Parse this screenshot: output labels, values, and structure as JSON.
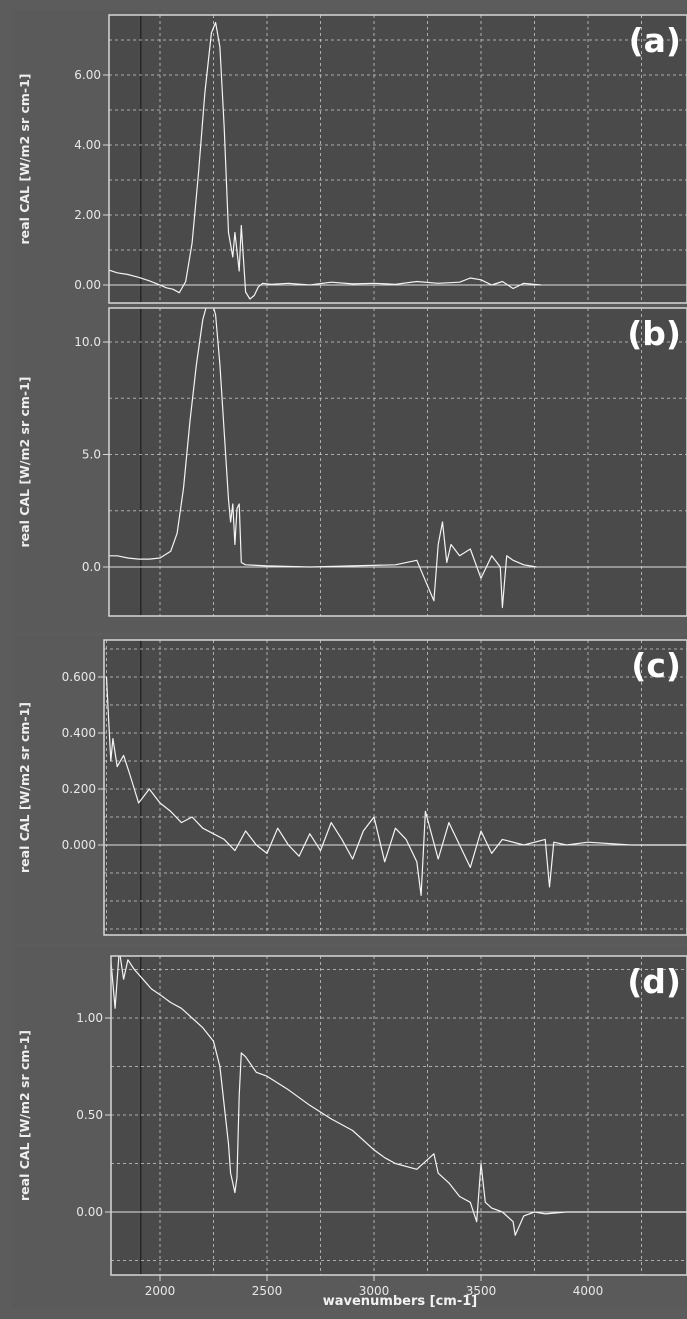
{
  "chart_data": [
    {
      "type": "line",
      "panel_label": "(a)",
      "ylabel": "real CAL  [W/m2 sr cm-1]",
      "xlim": [
        1750,
        4480
      ],
      "ylim": [
        -0.55,
        7.6
      ],
      "yticks": [
        0.0,
        2.0,
        4.0,
        6.0
      ],
      "ytick_labels": [
        "0.00",
        "2.00",
        "4.00",
        "6.00"
      ],
      "x": [
        1750,
        1800,
        1850,
        1900,
        1950,
        2000,
        2030,
        2060,
        2090,
        2120,
        2150,
        2180,
        2210,
        2240,
        2260,
        2280,
        2300,
        2320,
        2340,
        2350,
        2370,
        2380,
        2400,
        2420,
        2440,
        2460,
        2480,
        2520,
        2600,
        2700,
        2800,
        2900,
        3000,
        3100,
        3200,
        3300,
        3400,
        3450,
        3500,
        3550,
        3600,
        3650,
        3700,
        3780
      ],
      "y": [
        0.45,
        0.35,
        0.3,
        0.22,
        0.12,
        0.0,
        -0.08,
        -0.12,
        -0.22,
        0.1,
        1.2,
        3.2,
        5.5,
        7.2,
        7.5,
        6.8,
        4.5,
        1.5,
        0.8,
        1.5,
        0.4,
        1.7,
        -0.2,
        -0.4,
        -0.3,
        -0.05,
        0.05,
        0.02,
        0.05,
        0.0,
        0.08,
        0.03,
        0.05,
        0.02,
        0.1,
        0.05,
        0.08,
        0.2,
        0.15,
        0.0,
        0.1,
        -0.1,
        0.05,
        0.0
      ]
    },
    {
      "type": "line",
      "panel_label": "(b)",
      "ylabel": "real CAL  [W/m2 sr cm-1]",
      "xlim": [
        1750,
        4480
      ],
      "ylim": [
        -2.9,
        12.3
      ],
      "yticks": [
        0.0,
        5.0,
        10.0
      ],
      "ytick_labels": [
        "0.0",
        "5.0",
        "10.0"
      ],
      "x": [
        1750,
        1800,
        1850,
        1900,
        1950,
        2000,
        2050,
        2080,
        2110,
        2140,
        2170,
        2200,
        2220,
        2240,
        2260,
        2280,
        2300,
        2320,
        2330,
        2340,
        2350,
        2360,
        2370,
        2380,
        2400,
        2500,
        2700,
        2900,
        3100,
        3200,
        3280,
        3300,
        3320,
        3340,
        3360,
        3400,
        3450,
        3500,
        3550,
        3590,
        3600,
        3620,
        3650,
        3700,
        3760
      ],
      "y": [
        0.5,
        0.5,
        0.4,
        0.35,
        0.35,
        0.4,
        0.7,
        1.5,
        3.5,
        6.5,
        9.0,
        11.0,
        11.7,
        11.9,
        11.2,
        9.0,
        6.0,
        3.0,
        2.0,
        2.8,
        1.0,
        2.6,
        2.8,
        0.2,
        0.1,
        0.05,
        0.0,
        0.05,
        0.1,
        0.3,
        -1.5,
        1.0,
        2.0,
        0.2,
        1.0,
        0.5,
        0.8,
        -0.5,
        0.5,
        0.0,
        -1.8,
        0.5,
        0.3,
        0.1,
        0.0
      ]
    },
    {
      "type": "line",
      "panel_label": "(c)",
      "ylabel": "real CAL  [W/m2 sr cm-1]",
      "xlim": [
        1750,
        4480
      ],
      "ylim": [
        -0.2,
        0.68
      ],
      "yticks": [
        0.0,
        0.2,
        0.4,
        0.6
      ],
      "ytick_labels": [
        "0.000",
        "0.200",
        "0.400",
        "0.600"
      ],
      "x": [
        1750,
        1760,
        1770,
        1780,
        1800,
        1830,
        1860,
        1900,
        1950,
        2000,
        2050,
        2100,
        2150,
        2200,
        2250,
        2300,
        2350,
        2400,
        2450,
        2500,
        2550,
        2600,
        2650,
        2700,
        2750,
        2800,
        2850,
        2900,
        2950,
        3000,
        3050,
        3100,
        3150,
        3200,
        3220,
        3240,
        3300,
        3350,
        3400,
        3450,
        3500,
        3550,
        3600,
        3700,
        3800,
        3820,
        3840,
        3900,
        4000,
        4200,
        4480
      ],
      "y": [
        0.6,
        0.45,
        0.3,
        0.38,
        0.28,
        0.32,
        0.25,
        0.15,
        0.2,
        0.15,
        0.12,
        0.08,
        0.1,
        0.06,
        0.04,
        0.02,
        -0.02,
        0.05,
        0.0,
        -0.03,
        0.06,
        0.0,
        -0.04,
        0.04,
        -0.02,
        0.08,
        0.02,
        -0.05,
        0.05,
        0.1,
        -0.06,
        0.06,
        0.02,
        -0.06,
        -0.18,
        0.12,
        -0.05,
        0.08,
        0.0,
        -0.08,
        0.05,
        -0.03,
        0.02,
        0.0,
        0.02,
        -0.15,
        0.01,
        0.0,
        0.01,
        0.0,
        0.0
      ]
    },
    {
      "type": "line",
      "panel_label": "(d)",
      "ylabel": "real CAL  [W/m2 sr cm-1]",
      "xlabel": "wavenumbers [cm-1]",
      "xlim": [
        1750,
        4480
      ],
      "xticks": [
        2000,
        2500,
        3000,
        3500,
        4000
      ],
      "xtick_labels": [
        "2000",
        "2500",
        "3000",
        "3500",
        "4000"
      ],
      "ylim": [
        -0.12,
        1.45
      ],
      "yticks": [
        0.0,
        0.5,
        1.0
      ],
      "ytick_labels": [
        "0.00",
        "0.50",
        "1.00"
      ],
      "x": [
        1750,
        1770,
        1790,
        1810,
        1830,
        1850,
        1880,
        1920,
        1960,
        2000,
        2050,
        2100,
        2150,
        2200,
        2250,
        2280,
        2300,
        2320,
        2330,
        2340,
        2350,
        2360,
        2370,
        2380,
        2400,
        2450,
        2500,
        2600,
        2700,
        2800,
        2900,
        3000,
        3050,
        3100,
        3200,
        3280,
        3300,
        3350,
        3400,
        3450,
        3480,
        3500,
        3520,
        3550,
        3600,
        3650,
        3660,
        3700,
        3750,
        3800,
        3900,
        4000,
        4200,
        4480
      ],
      "y": [
        1.1,
        1.3,
        1.05,
        1.35,
        1.2,
        1.3,
        1.25,
        1.2,
        1.15,
        1.12,
        1.08,
        1.05,
        1.0,
        0.95,
        0.88,
        0.75,
        0.55,
        0.35,
        0.2,
        0.15,
        0.1,
        0.18,
        0.6,
        0.82,
        0.8,
        0.72,
        0.7,
        0.63,
        0.55,
        0.48,
        0.42,
        0.32,
        0.28,
        0.25,
        0.22,
        0.3,
        0.2,
        0.15,
        0.08,
        0.05,
        -0.05,
        0.25,
        0.05,
        0.02,
        0.0,
        -0.05,
        -0.12,
        -0.02,
        0.0,
        -0.01,
        0.0,
        0.0,
        0.0,
        0.0
      ]
    }
  ]
}
